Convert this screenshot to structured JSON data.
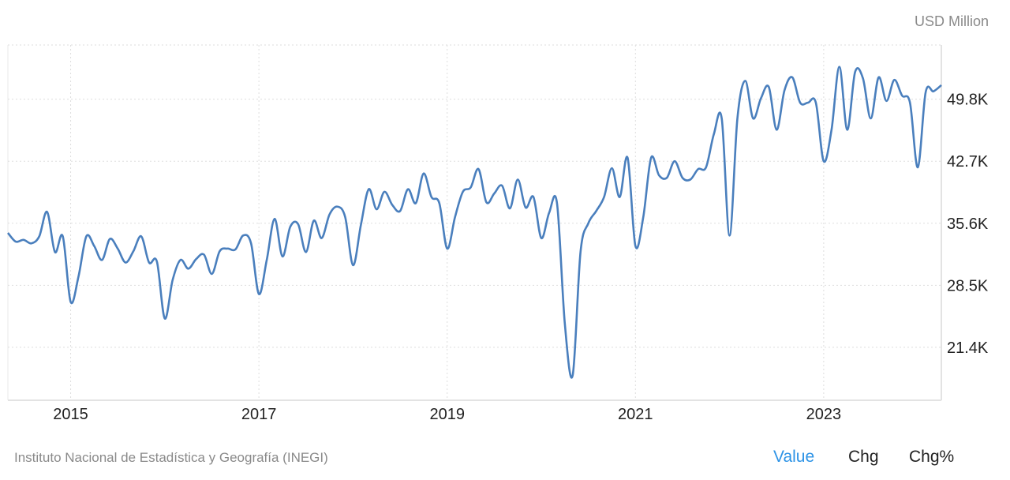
{
  "chart_data": {
    "type": "line",
    "title": "",
    "unit_label": "USD Million",
    "xlabel": "",
    "ylabel": "USD Million",
    "x_start": "2014-05",
    "frequency": "monthly",
    "x_ticks": [
      "2015",
      "2017",
      "2019",
      "2021",
      "2023"
    ],
    "y_ticks": [
      "21.4K",
      "28.5K",
      "35.6K",
      "42.7K",
      "49.8K"
    ],
    "y_tick_values": [
      21.4,
      28.5,
      35.6,
      42.7,
      49.8
    ],
    "ylim": [
      15.34,
      56.0
    ],
    "xlim": [
      "2014-05",
      "2024-04"
    ],
    "grid": true,
    "series": [
      {
        "name": "Value",
        "color": "#4a7fbd",
        "values": [
          34.5,
          33.5,
          33.7,
          33.3,
          34.1,
          36.9,
          32.3,
          34.1,
          26.6,
          29.5,
          34.1,
          33.0,
          31.4,
          33.8,
          32.7,
          31.1,
          32.4,
          34.1,
          31.1,
          31.2,
          24.7,
          29.1,
          31.4,
          30.4,
          31.5,
          32.0,
          29.8,
          32.4,
          32.7,
          32.6,
          34.2,
          33.3,
          27.5,
          31.4,
          36.1,
          31.8,
          35.2,
          35.5,
          32.3,
          35.9,
          33.9,
          36.6,
          37.5,
          36.3,
          30.8,
          35.4,
          39.5,
          37.2,
          39.2,
          37.7,
          37.0,
          39.5,
          37.9,
          41.3,
          38.6,
          37.9,
          32.7,
          36.3,
          39.2,
          39.7,
          41.8,
          38.0,
          39.0,
          39.9,
          37.3,
          40.6,
          37.4,
          38.6,
          33.9,
          36.8,
          37.9,
          24.1,
          18.2,
          32.3,
          35.6,
          37.0,
          38.6,
          41.9,
          38.6,
          43.1,
          33.0,
          36.3,
          43.1,
          41.1,
          40.8,
          42.7,
          40.8,
          40.6,
          41.8,
          42.0,
          45.8,
          47.6,
          34.2,
          47.6,
          51.9,
          47.6,
          49.9,
          51.2,
          46.3,
          50.8,
          52.3,
          49.4,
          49.4,
          49.4,
          42.7,
          46.3,
          53.5,
          46.3,
          52.9,
          52.2,
          47.6,
          52.3,
          49.6,
          52.0,
          50.2,
          49.4,
          42.0,
          50.6,
          50.7,
          51.4
        ]
      }
    ]
  },
  "source": "Instituto Nacional de Estadística y Geografía (INEGI)",
  "tabs": [
    {
      "label": "Value",
      "active": true
    },
    {
      "label": "Chg",
      "active": false
    },
    {
      "label": "Chg%",
      "active": false
    }
  ],
  "colors": {
    "line": "#4a7fbd",
    "active_tab": "#2d93e6",
    "grid": "#dddddd"
  }
}
